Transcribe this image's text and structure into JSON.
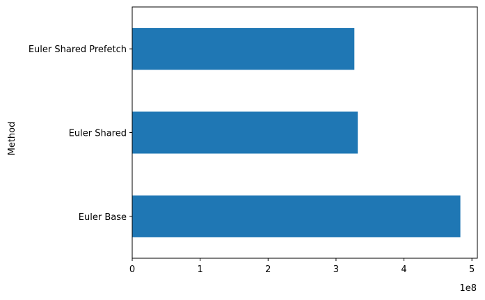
{
  "chart_data": {
    "type": "bar",
    "orientation": "horizontal",
    "categories": [
      "Euler Base",
      "Euler Shared",
      "Euler Shared Prefetch"
    ],
    "values": [
      4.83,
      3.32,
      3.27
    ],
    "ylabel": "Method",
    "xlabel": "",
    "xlim": [
      0,
      5.08
    ],
    "x_ticks": [
      0,
      1,
      2,
      3,
      4,
      5
    ],
    "x_tick_labels": [
      "0",
      "1",
      "2",
      "3",
      "4",
      "5"
    ],
    "x_offset_label": "1e8",
    "bar_color": "#1f77b4",
    "grid": false,
    "legend": "none"
  }
}
